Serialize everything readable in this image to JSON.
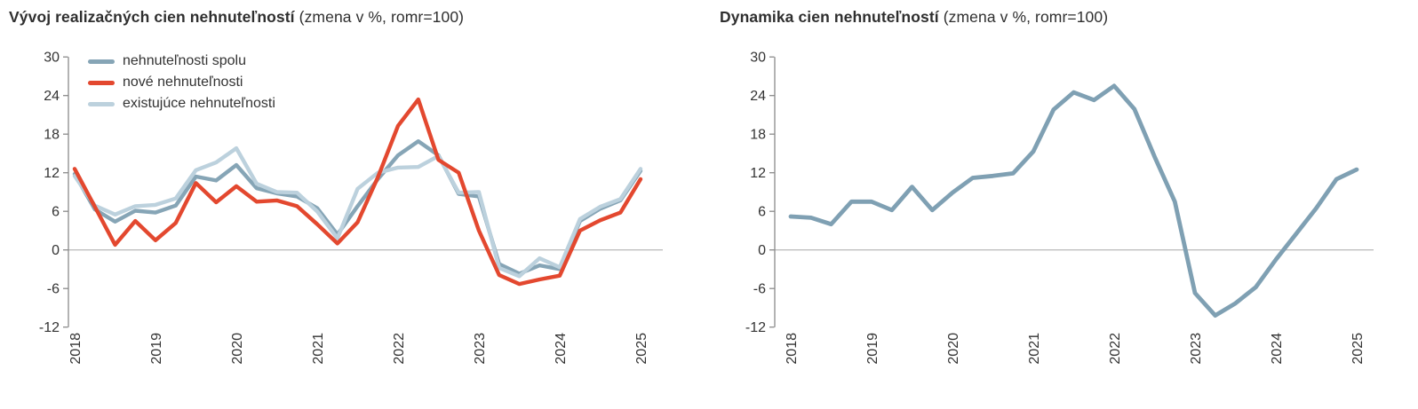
{
  "chart_data": [
    {
      "type": "line",
      "title_bold": "Vývoj realizačných cien nehnuteľností",
      "title_note": "(zmena v %, romr=100)",
      "frequency": "quarterly",
      "x_range": "2018Q1–2025Q1",
      "x_tick_labels": [
        "2018",
        "2019",
        "2020",
        "2021",
        "2022",
        "2023",
        "2024",
        "2025"
      ],
      "ylim": [
        -12,
        30
      ],
      "yticks": [
        30,
        24,
        18,
        12,
        6,
        0,
        -6,
        -12
      ],
      "grid": "zero-line-only",
      "legend_position": "top-left-inside",
      "legend": [
        {
          "label": "nehnuteľnosti spolu",
          "color": "#86A5B6"
        },
        {
          "label": "nové nehnuteľnosti",
          "color": "#E3482F"
        },
        {
          "label": "existujúce nehnuteľnosti",
          "color": "#BCD1DD"
        }
      ],
      "series": [
        {
          "name": "nehnuteľnosti spolu",
          "color": "#86A5B6",
          "values": [
            11.8,
            6.3,
            4.4,
            6.1,
            5.8,
            6.9,
            11.4,
            10.8,
            13.2,
            9.6,
            8.8,
            8.3,
            6.5,
            2.4,
            6.8,
            11.0,
            14.7,
            16.9,
            14.7,
            8.7,
            8.3,
            -2.2,
            -3.7,
            -2.4,
            -3.0,
            4.5,
            6.4,
            7.7,
            12.3
          ]
        },
        {
          "name": "nové nehnuteľnosti",
          "color": "#E3482F",
          "values": [
            12.6,
            6.7,
            0.8,
            4.5,
            1.5,
            4.2,
            10.4,
            7.4,
            9.9,
            7.5,
            7.7,
            6.8,
            4.0,
            1.0,
            4.3,
            11.3,
            19.3,
            23.4,
            14.0,
            12.0,
            3.0,
            -3.9,
            -5.3,
            -4.6,
            -4.0,
            3.0,
            4.6,
            5.8,
            11.0
          ]
        },
        {
          "name": "existujúce nehnuteľnosti",
          "color": "#BCD1DD",
          "values": [
            11.5,
            6.9,
            5.5,
            6.8,
            7.0,
            8.0,
            12.4,
            13.6,
            15.8,
            10.3,
            9.0,
            8.9,
            6.0,
            1.8,
            9.5,
            12.0,
            12.8,
            12.9,
            14.6,
            8.9,
            9.0,
            -2.8,
            -4.1,
            -1.3,
            -2.7,
            4.8,
            6.7,
            7.9,
            12.6
          ]
        }
      ],
      "draw_order": [
        "nehnuteľnosti spolu",
        "existujúce nehnuteľnosti",
        "nové nehnuteľnosti"
      ]
    },
    {
      "type": "line",
      "title_bold": "Dynamika cien nehnuteľností",
      "title_note": "(zmena v %, romr=100)",
      "frequency": "quarterly",
      "x_range": "2018Q1–2025Q1",
      "x_tick_labels": [
        "2018",
        "2019",
        "2020",
        "2021",
        "2022",
        "2023",
        "2024",
        "2025"
      ],
      "ylim": [
        -12,
        30
      ],
      "yticks": [
        30,
        24,
        18,
        12,
        6,
        0,
        -6,
        -12
      ],
      "grid": "zero-line-only",
      "legend": [],
      "series": [
        {
          "name": "",
          "color": "#7FA0B3",
          "values": [
            5.2,
            5.0,
            4.0,
            7.5,
            7.5,
            6.2,
            9.8,
            6.2,
            8.9,
            11.2,
            11.5,
            11.9,
            15.3,
            21.8,
            24.5,
            23.3,
            25.5,
            21.9,
            14.5,
            7.5,
            -6.7,
            -10.2,
            -8.3,
            -5.8,
            -1.5,
            2.5,
            6.5,
            11.0,
            12.5
          ]
        }
      ]
    }
  ],
  "colors": {
    "text": "#333333",
    "axis": "#8a8a8a",
    "zero_line": "#a8a8a8",
    "spolu": "#86A5B6",
    "nove": "#E3482F",
    "existujuce": "#BCD1DD",
    "dynamika": "#7FA0B3"
  }
}
